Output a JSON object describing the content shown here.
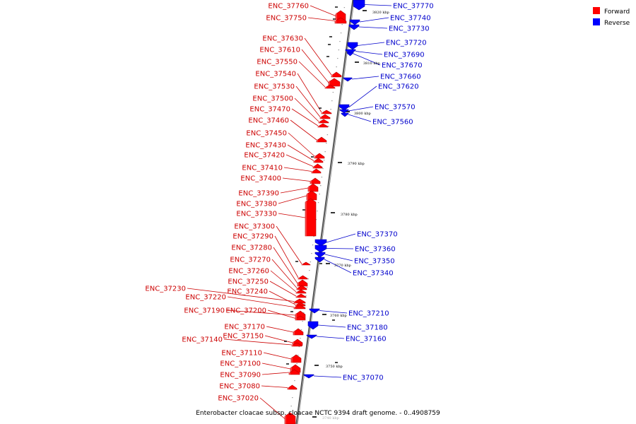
{
  "caption": "Enterobacter cloacae subsp. cloacae NCTC 9394 draft genome. - 0..4908759",
  "legend": [
    {
      "label": "Forward",
      "color": "#ff0000"
    },
    {
      "label": "Reverse",
      "color": "#0000ff"
    }
  ],
  "colors": {
    "forward": "#ff0000",
    "reverse": "#0000ff",
    "forward_label": "#cc0000",
    "reverse_label": "#0000cc",
    "backbone": "#888888"
  },
  "ticks": [
    {
      "label": "3820 kbp",
      "faint": false
    },
    {
      "label": "3810 kbp",
      "faint": false
    },
    {
      "label": "3800 kbp",
      "faint": false
    },
    {
      "label": "3790 kbp",
      "faint": false
    },
    {
      "label": "3780 kbp",
      "faint": false
    },
    {
      "label": "3770 kbp",
      "faint": false
    },
    {
      "label": "3760 kbp",
      "faint": false
    },
    {
      "label": "3750 kbp",
      "faint": false
    },
    {
      "label": "3740 kbp",
      "faint": true
    }
  ],
  "forward_genes": [
    "ENC_37760",
    "ENC_37750",
    "ENC_37630",
    "ENC_37610",
    "ENC_37550",
    "ENC_37540",
    "ENC_37530",
    "ENC_37500",
    "ENC_37470",
    "ENC_37460",
    "ENC_37450",
    "ENC_37430",
    "ENC_37420",
    "ENC_37410",
    "ENC_37400",
    "ENC_37390",
    "ENC_37380",
    "ENC_37330",
    "ENC_37300",
    "ENC_37290",
    "ENC_37280",
    "ENC_37270",
    "ENC_37260",
    "ENC_37250",
    "ENC_37230",
    "ENC_37240",
    "ENC_37220",
    "ENC_37190",
    "ENC_37200",
    "ENC_37170",
    "ENC_37150",
    "ENC_37140",
    "ENC_37110",
    "ENC_37100",
    "ENC_37090",
    "ENC_37080",
    "ENC_37020"
  ],
  "reverse_genes": [
    "ENC_37770",
    "ENC_37740",
    "ENC_37730",
    "ENC_37720",
    "ENC_37690",
    "ENC_37670",
    "ENC_37660",
    "ENC_37620",
    "ENC_37570",
    "ENC_37560",
    "ENC_37370",
    "ENC_37360",
    "ENC_37350",
    "ENC_37340",
    "ENC_37210",
    "ENC_37180",
    "ENC_37160",
    "ENC_37070"
  ]
}
